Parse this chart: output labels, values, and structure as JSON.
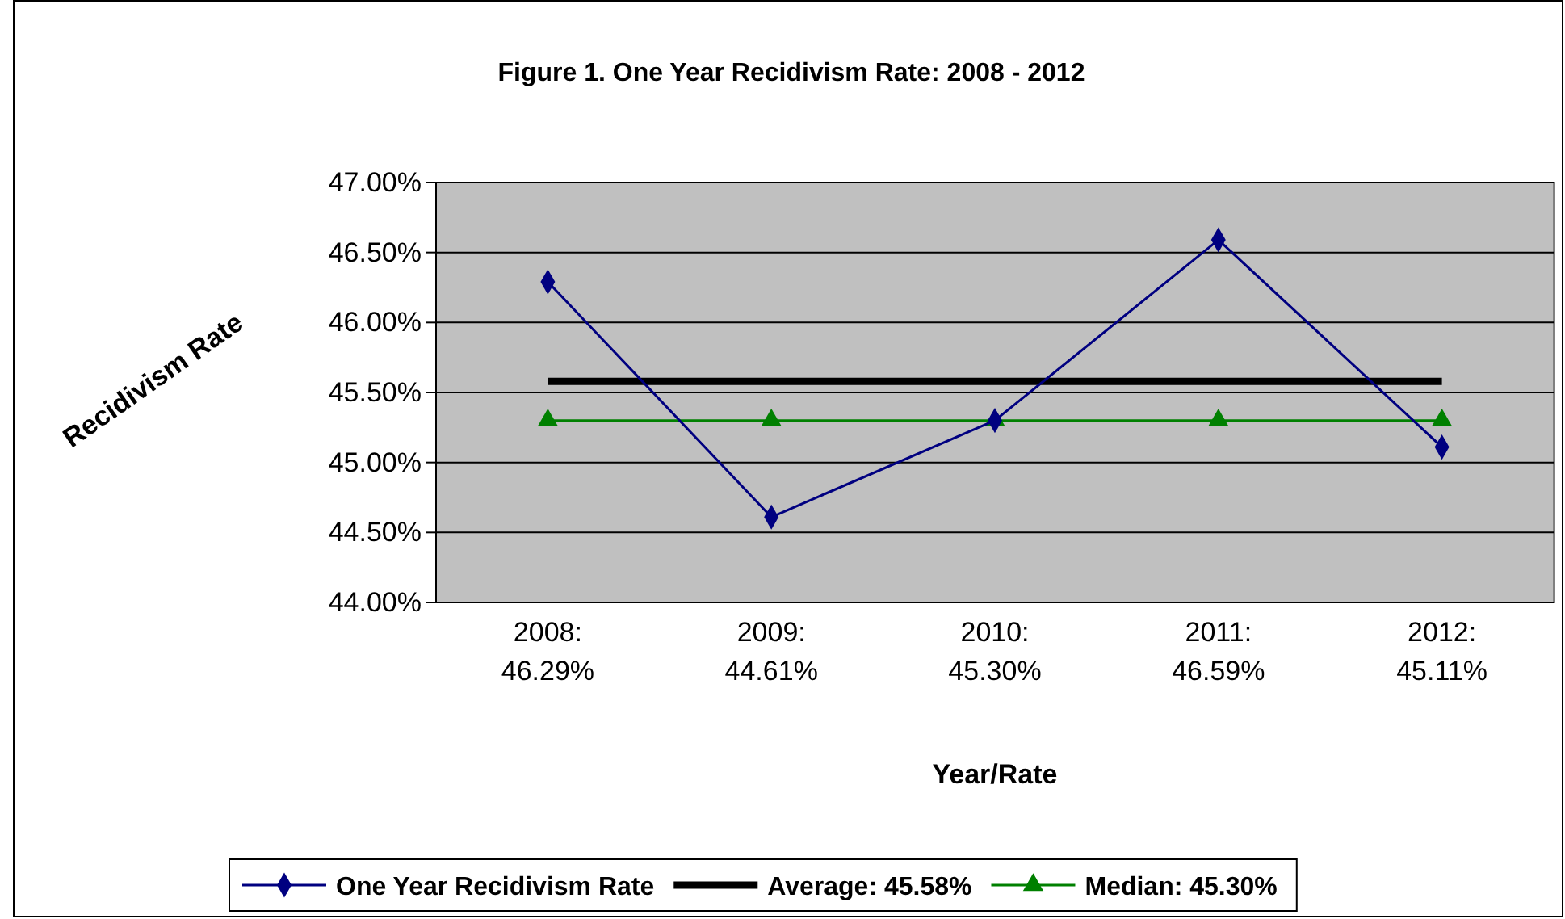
{
  "chart_data": {
    "type": "line",
    "title": "Figure 1. One Year Recidivism Rate: 2008 - 2012",
    "xlabel": "Year/Rate",
    "ylabel": "Recidivism Rate",
    "categories": [
      "2008: 46.29%",
      "2009: 44.61%",
      "2010: 45.30%",
      "2011: 46.59%",
      "2012: 45.11%"
    ],
    "series": [
      {
        "name": "One Year Recidivism Rate",
        "color": "#000080",
        "marker": "diamond",
        "values": [
          46.29,
          44.61,
          45.3,
          46.59,
          45.11
        ]
      },
      {
        "name": "Average: 45.58%",
        "color": "#000000",
        "marker": "none",
        "values": [
          45.58,
          45.58,
          45.58,
          45.58,
          45.58
        ]
      },
      {
        "name": "Median: 45.30%",
        "color": "#008000",
        "marker": "triangle",
        "values": [
          45.3,
          45.3,
          45.3,
          45.3,
          45.3
        ]
      }
    ],
    "ylim": [
      44,
      47
    ],
    "yticks": [
      {
        "value": 44,
        "label": "44.00%"
      },
      {
        "value": 44.5,
        "label": "44.50%"
      },
      {
        "value": 45,
        "label": "45.00%"
      },
      {
        "value": 45.5,
        "label": "45.50%"
      },
      {
        "value": 46,
        "label": "46.00%"
      },
      {
        "value": 46.5,
        "label": "46.50%"
      },
      {
        "value": 47,
        "label": "47.00%"
      }
    ],
    "grid": "y",
    "legend": "bottom"
  }
}
